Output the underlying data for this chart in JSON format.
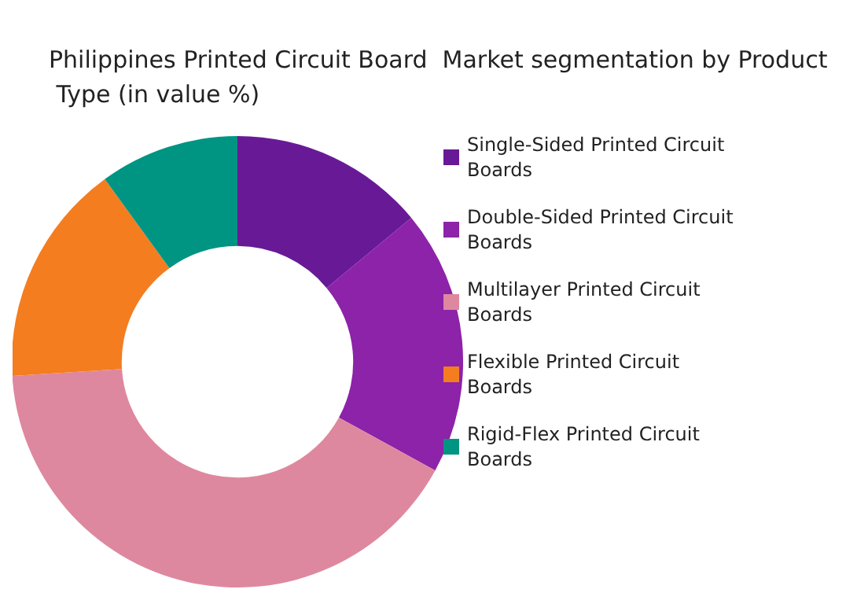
{
  "chart_data": {
    "type": "donut",
    "title": "Philippines Printed Circuit Board  Market segmentation by Product Type (in value %)",
    "categories": [
      "Single-Sided Printed Circuit Boards",
      "Double-Sided Printed Circuit Boards",
      "Multilayer Printed Circuit Boards",
      "Flexible Printed Circuit Boards",
      "Rigid-Flex Printed Circuit Boards"
    ],
    "values": [
      14,
      19,
      41,
      16,
      10
    ],
    "colors": [
      "#681a96",
      "#8c23a8",
      "#de889f",
      "#f47d20",
      "#009482"
    ],
    "legend": "right"
  }
}
